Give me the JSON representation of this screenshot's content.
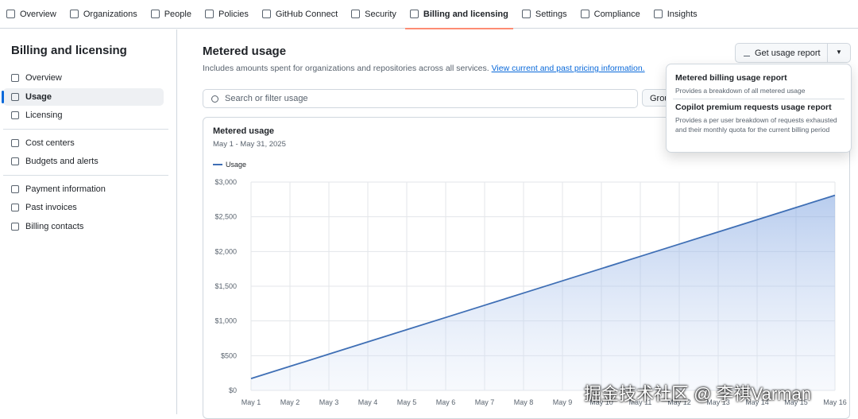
{
  "nav": {
    "tabs": [
      "Overview",
      "Organizations",
      "People",
      "Policies",
      "GitHub Connect",
      "Security",
      "Billing and licensing",
      "Settings",
      "Compliance",
      "Insights"
    ],
    "selected": 6
  },
  "sidebar": {
    "title": "Billing and licensing",
    "groups": [
      [
        "Overview",
        "Usage",
        "Licensing"
      ],
      [
        "Cost centers",
        "Budgets and alerts"
      ],
      [
        "Payment information",
        "Past invoices",
        "Billing contacts"
      ]
    ],
    "selected": [
      0,
      1
    ]
  },
  "main": {
    "title": "Metered usage",
    "description": "Includes amounts spent for organizations and repositories across all services.",
    "link": "View current and past pricing information.",
    "search": "Search or filter usage",
    "group_button": "Grou",
    "report_button": "Get usage report"
  },
  "dropdown": {
    "items": [
      {
        "title": "Metered billing usage report",
        "text": "Provides a breakdown of all metered usage"
      },
      {
        "title": "Copilot premium requests usage report",
        "text": "Provides a per user breakdown of requests exhausted and their monthly quota for the current billing period"
      }
    ]
  },
  "watermark": "掘金技术社区 @ 李祺Varman",
  "chart_data": {
    "type": "area",
    "title": "Metered usage",
    "subtitle": "May 1 - May 31, 2025",
    "categories": [
      "May 1",
      "May 2",
      "May 3",
      "May 4",
      "May 5",
      "May 6",
      "May 7",
      "May 8",
      "May 9",
      "May 10",
      "May 11",
      "May 12",
      "May 13",
      "May 14",
      "May 15",
      "May 16"
    ],
    "series": [
      {
        "name": "Usage",
        "color": "#3f6fb5",
        "values": [
          170,
          346,
          522,
          698,
          874,
          1050,
          1226,
          1402,
          1578,
          1754,
          1930,
          2106,
          2282,
          2458,
          2634,
          2810
        ]
      }
    ],
    "ylim": [
      0,
      3000
    ],
    "yticks": [
      {
        "value": 0,
        "label": "$0"
      },
      {
        "value": 500,
        "label": "$500"
      },
      {
        "value": 1000,
        "label": "$1,000"
      },
      {
        "value": 1500,
        "label": "$1,500"
      },
      {
        "value": 2000,
        "label": "$2,000"
      },
      {
        "value": 2500,
        "label": "$2,500"
      },
      {
        "value": 3000,
        "label": "$3,000"
      }
    ],
    "grid": true
  }
}
